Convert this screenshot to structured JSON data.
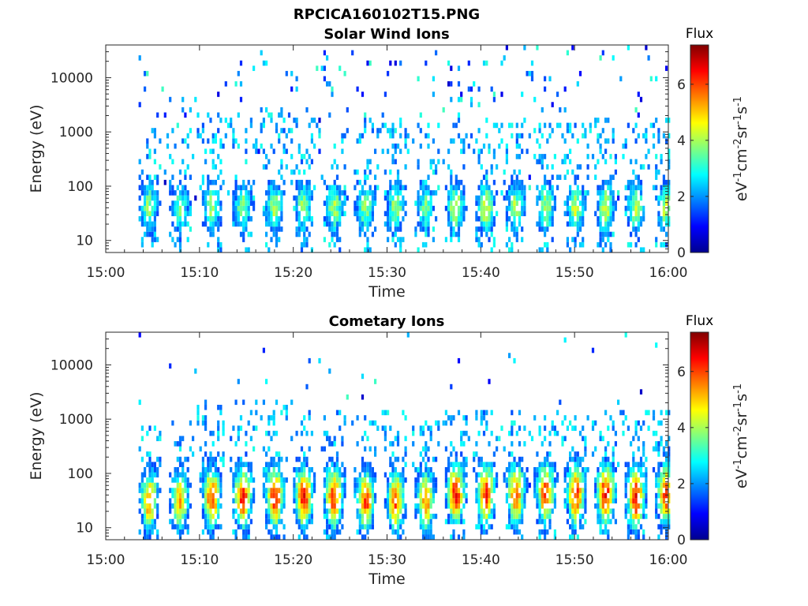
{
  "figure": {
    "filename": "RPCICA160102T15.PNG"
  },
  "chart_data": [
    {
      "type": "heatmap",
      "title": "Solar Wind Ions",
      "xlabel": "Time",
      "ylabel": "Energy (eV)",
      "x_ticks": [
        "15:00",
        "15:10",
        "15:20",
        "15:30",
        "15:40",
        "15:50",
        "16:00"
      ],
      "x_range": [
        "15:00",
        "16:00"
      ],
      "y_scale": "log",
      "y_ticks": [
        "10",
        "100",
        "1000",
        "10000"
      ],
      "y_range": [
        6,
        40000
      ],
      "colorbar": {
        "label": "Flux",
        "units": "eV-1cm-2sr-1s-1",
        "ticks": [
          "0",
          "2",
          "4",
          "6"
        ],
        "range": [
          0,
          7.4
        ],
        "colormap": "jet"
      },
      "bursts": {
        "times": [
          "15:04.5",
          "15:07.8",
          "15:11.2",
          "15:14.5",
          "15:17.9",
          "15:21.0",
          "15:24.2",
          "15:27.6",
          "15:30.8",
          "15:34.0",
          "15:37.2",
          "15:40.4",
          "15:43.6",
          "15:46.8",
          "15:50.0",
          "15:53.2",
          "15:56.4",
          "15:59.6"
        ],
        "peak_energy_eV": [
          40,
          40,
          40,
          40,
          40,
          40,
          40,
          40,
          40,
          40,
          40,
          40,
          40,
          40,
          40,
          40,
          40,
          40
        ],
        "peak_flux": [
          3.8,
          3.5,
          4.0,
          3.8,
          4.0,
          3.9,
          4.1,
          3.9,
          4.0,
          3.5,
          4.4,
          4.5,
          4.0,
          4.1,
          4.2,
          4.3,
          4.0,
          4.2
        ],
        "max_energy_eV": [
          1500,
          1200,
          3000,
          2000,
          3000,
          2000,
          1500,
          1800,
          1500,
          1500,
          1500,
          2000,
          1500,
          1500,
          1500,
          1800,
          1500,
          2000
        ]
      }
    },
    {
      "type": "heatmap",
      "title": "Cometary Ions",
      "xlabel": "Time",
      "ylabel": "Energy (eV)",
      "x_ticks": [
        "15:00",
        "15:10",
        "15:20",
        "15:30",
        "15:40",
        "15:50",
        "16:00"
      ],
      "x_range": [
        "15:00",
        "16:00"
      ],
      "y_scale": "log",
      "y_ticks": [
        "10",
        "100",
        "1000",
        "10000"
      ],
      "y_range": [
        6,
        40000
      ],
      "colorbar": {
        "label": "Flux",
        "units": "eV-1cm-2sr-1s-1",
        "ticks": [
          "0",
          "2",
          "4",
          "6"
        ],
        "range": [
          0,
          7.4
        ],
        "colormap": "jet"
      },
      "bursts": {
        "times": [
          "15:04.5",
          "15:07.8",
          "15:11.2",
          "15:14.5",
          "15:17.9",
          "15:21.0",
          "15:24.2",
          "15:27.6",
          "15:30.8",
          "15:34.0",
          "15:37.2",
          "15:40.4",
          "15:43.6",
          "15:46.8",
          "15:50.0",
          "15:53.2",
          "15:56.4",
          "15:59.6"
        ],
        "peak_energy_eV": [
          30,
          30,
          35,
          35,
          35,
          35,
          35,
          30,
          30,
          30,
          40,
          40,
          40,
          40,
          40,
          40,
          35,
          40
        ],
        "peak_flux": [
          5.5,
          5.2,
          6.0,
          6.2,
          6.4,
          6.3,
          6.2,
          6.0,
          5.8,
          5.5,
          6.3,
          6.2,
          5.8,
          6.0,
          6.2,
          6.4,
          6.5,
          6.0
        ],
        "max_energy_eV": [
          800,
          900,
          2000,
          2500,
          2500,
          1500,
          1500,
          1200,
          1500,
          1000,
          1500,
          1500,
          1500,
          1200,
          1500,
          1500,
          1500,
          1500
        ]
      }
    }
  ]
}
